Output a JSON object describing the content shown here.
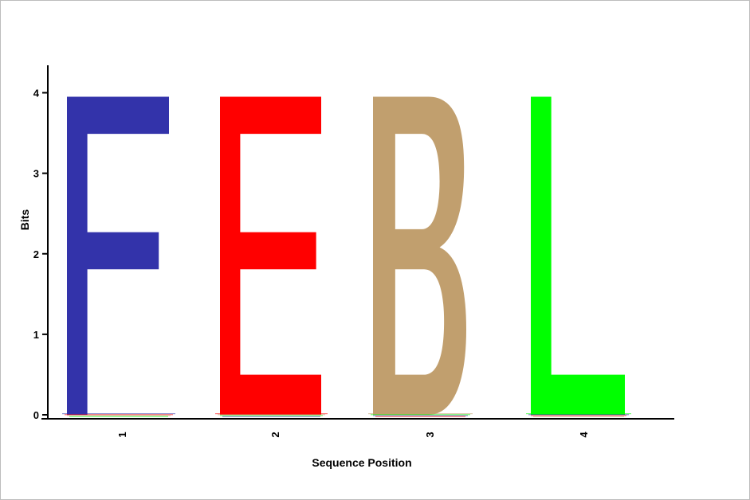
{
  "chart_data": {
    "type": "sequence-logo",
    "xlabel": "Sequence Position",
    "ylabel": "Bits",
    "ylim": [
      0,
      4
    ],
    "y_ticks": [
      "0",
      "1",
      "2",
      "3",
      "4"
    ],
    "positions": [
      "1",
      "2",
      "3",
      "4"
    ],
    "letters": [
      {
        "position": "1",
        "letter": "F",
        "bits": 3.95,
        "color": "#3333aa"
      },
      {
        "position": "2",
        "letter": "E",
        "bits": 3.95,
        "color": "#ff0000"
      },
      {
        "position": "3",
        "letter": "B",
        "bits": 3.95,
        "color": "#c19f6e"
      },
      {
        "position": "4",
        "letter": "L",
        "bits": 3.95,
        "color": "#00ff00"
      }
    ],
    "grid": false,
    "legend": "none"
  }
}
